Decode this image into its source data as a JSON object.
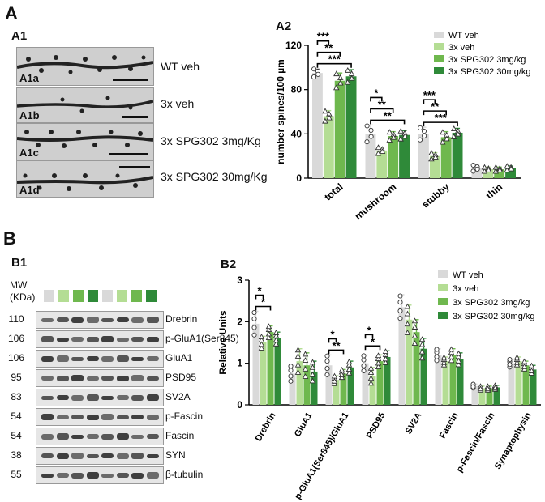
{
  "panels": {
    "A": "A",
    "A1": "A1",
    "A2": "A2",
    "B": "B",
    "B1": "B1",
    "B2": "B2"
  },
  "colors": {
    "wt": "#d9d9d9",
    "veh3x": "#b4dd94",
    "spg3": "#6fb84e",
    "spg30": "#2f8a39"
  },
  "a1": {
    "rows": [
      {
        "tag": "A1a",
        "condition": "WT veh"
      },
      {
        "tag": "A1b",
        "condition": "3x veh"
      },
      {
        "tag": "A1c",
        "condition": "3x SPG302 3mg/Kg"
      },
      {
        "tag": "A1d",
        "condition": "3x SPG302 30mg/Kg"
      }
    ]
  },
  "b1": {
    "mw_header": "MW\n(KDa)",
    "lane_colors": [
      "#d9d9d9",
      "#b4dd94",
      "#6fb84e",
      "#2f8a39",
      "#d9d9d9",
      "#b4dd94",
      "#6fb84e",
      "#2f8a39"
    ],
    "blots": [
      {
        "mw": "110",
        "name": "Drebrin"
      },
      {
        "mw": "106",
        "name": "p-GluA1(Ser845)"
      },
      {
        "mw": "106",
        "name": "GluA1"
      },
      {
        "mw": "95",
        "name": "PSD95"
      },
      {
        "mw": "83",
        "name": "SV2A"
      },
      {
        "mw": "54",
        "name": "p-Fascin"
      },
      {
        "mw": "54",
        "name": "Fascin"
      },
      {
        "mw": "38",
        "name": "SYN"
      },
      {
        "mw": "55",
        "name": "β-tubulin"
      }
    ]
  },
  "chart_data": [
    {
      "id": "A2",
      "type": "bar",
      "ylabel": "number spines/100 µm",
      "ylim": [
        0,
        120
      ],
      "yticks": [
        "0",
        "40",
        "80",
        "120"
      ],
      "categories": [
        "total",
        "mushroom",
        "stubby",
        "thin"
      ],
      "legend_position": "top-right",
      "series": [
        {
          "name": "WT veh",
          "values": [
            95,
            40,
            40,
            9
          ],
          "errors": [
            4,
            8,
            6,
            3
          ]
        },
        {
          "name": "3x veh",
          "values": [
            56,
            25,
            20,
            8
          ],
          "errors": [
            5,
            3,
            3,
            2
          ]
        },
        {
          "name": "3x SPG302 3mg/kg",
          "values": [
            88,
            38,
            37,
            8
          ],
          "errors": [
            7,
            4,
            5,
            2
          ]
        },
        {
          "name": "3x SPG302 30mg/kg",
          "values": [
            92,
            39,
            41,
            9
          ],
          "errors": [
            6,
            4,
            4,
            2
          ]
        }
      ],
      "significance": [
        {
          "category": 0,
          "stars": [
            "***",
            "**",
            "***"
          ]
        },
        {
          "category": 1,
          "stars": [
            "*",
            "**",
            "**"
          ]
        },
        {
          "category": 2,
          "stars": [
            "***",
            "**",
            "***"
          ]
        }
      ]
    },
    {
      "id": "B2",
      "type": "bar",
      "ylabel": "Relative Units",
      "ylim": [
        0,
        3
      ],
      "yticks": [
        "0",
        "1",
        "2",
        "3"
      ],
      "categories": [
        "Drebrin",
        "GluA1",
        "p-GluA1(Ser845)/GluA1",
        "PSD95",
        "SV2A",
        "Fascin",
        "p-Fascin/Fascin",
        "Synaptophysin"
      ],
      "legend_position": "top-right",
      "series": [
        {
          "name": "WT veh",
          "values": [
            1.95,
            0.75,
            0.95,
            1.0,
            2.35,
            1.2,
            0.45,
            1.0
          ],
          "errors": [
            0.3,
            0.2,
            0.25,
            0.2,
            0.3,
            0.15,
            0.05,
            0.1
          ]
        },
        {
          "name": "3x veh",
          "values": [
            1.5,
            1.05,
            0.6,
            0.7,
            2.05,
            1.05,
            0.4,
            1.05
          ],
          "errors": [
            0.15,
            0.3,
            0.1,
            0.2,
            0.35,
            0.1,
            0.05,
            0.1
          ]
        },
        {
          "name": "3x SPG302 3mg/kg",
          "values": [
            1.75,
            0.95,
            0.75,
            1.05,
            1.75,
            1.2,
            0.4,
            0.95
          ],
          "errors": [
            0.15,
            0.3,
            0.1,
            0.15,
            0.3,
            0.15,
            0.05,
            0.1
          ]
        },
        {
          "name": "3x SPG302 30mg/kg",
          "values": [
            1.6,
            0.8,
            0.9,
            1.15,
            1.35,
            1.1,
            0.42,
            0.85
          ],
          "errors": [
            0.15,
            0.25,
            0.15,
            0.15,
            0.25,
            0.15,
            0.05,
            0.1
          ]
        }
      ],
      "significance": [
        {
          "category": 0,
          "stars": [
            "*",
            "*"
          ]
        },
        {
          "category": 2,
          "stars": [
            "*",
            "**"
          ]
        },
        {
          "category": 3,
          "stars": [
            "*",
            "*"
          ]
        }
      ]
    }
  ]
}
